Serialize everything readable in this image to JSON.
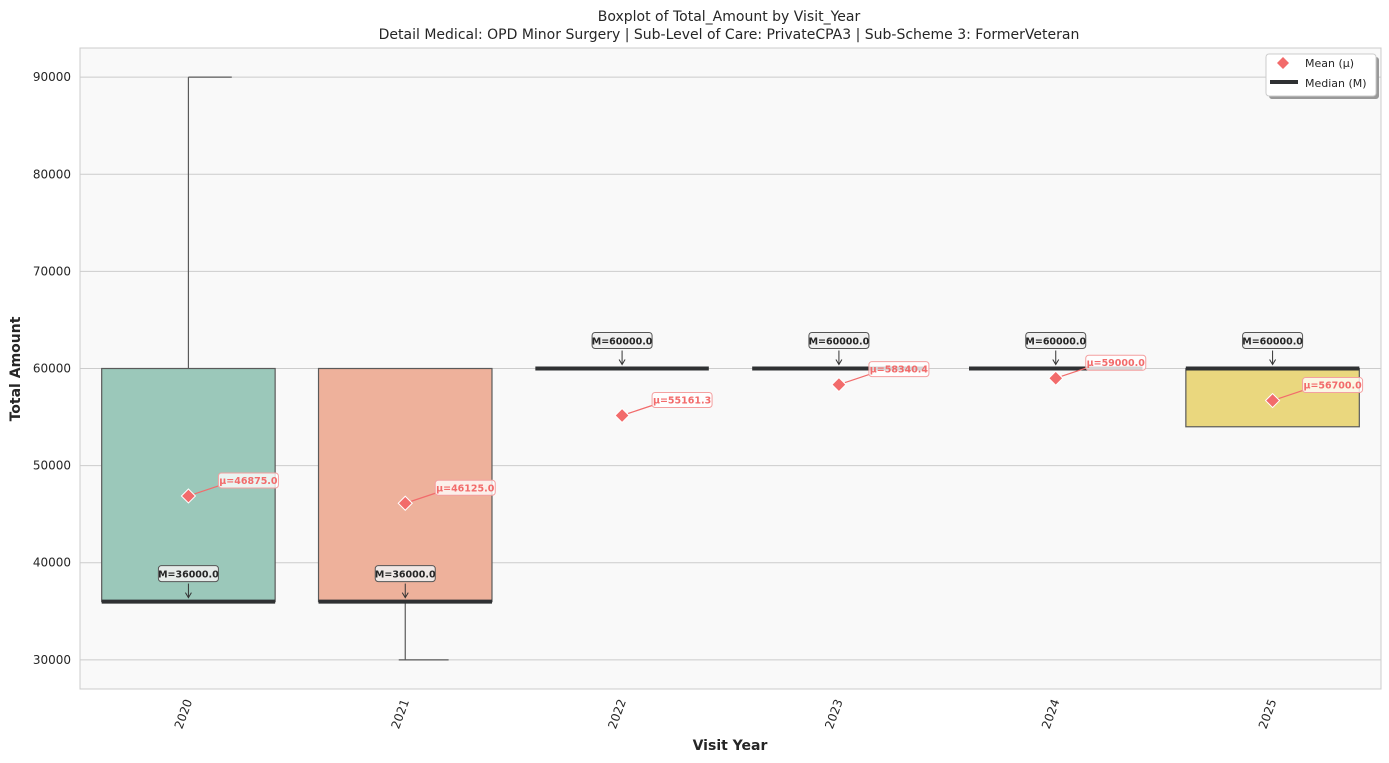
{
  "title": {
    "line1": "Boxplot of Total_Amount by Visit_Year",
    "line2": "Detail Medical: OPD Minor Surgery | Sub-Level of Care: PrivateCPA3 | Sub-Scheme 3: FormerVeteran"
  },
  "chart_data": {
    "type": "box",
    "xlabel": "Visit Year",
    "ylabel": "Total Amount",
    "ylim": [
      27000,
      93000
    ],
    "yticks": [
      30000,
      40000,
      50000,
      60000,
      70000,
      80000,
      90000
    ],
    "grid": true,
    "legend_position": "top-right",
    "legend": [
      {
        "label": "Mean (μ)",
        "marker": "diamond",
        "color": "#f26b6b"
      },
      {
        "label": "Median (M)",
        "marker": "line",
        "color": "#2f3133"
      }
    ],
    "categories": [
      "2020",
      "2021",
      "2022",
      "2023",
      "2024",
      "2025"
    ],
    "boxes": [
      {
        "year": "2020",
        "whisker_low": 36000,
        "q1": 36000,
        "median": 36000,
        "q3": 60000,
        "whisker_high": 90000,
        "mean": 46875.0,
        "median_label": "M=36000.0",
        "mean_label": "μ=46875.0",
        "color": "#9bc8ba"
      },
      {
        "year": "2021",
        "whisker_low": 30000,
        "q1": 36000,
        "median": 36000,
        "q3": 60000,
        "whisker_high": 60000,
        "mean": 46125.0,
        "median_label": "M=36000.0",
        "mean_label": "μ=46125.0",
        "color": "#eeb19b"
      },
      {
        "year": "2022",
        "whisker_low": 60000,
        "q1": 60000,
        "median": 60000,
        "q3": 60000,
        "whisker_high": 60000,
        "mean": 55161.3,
        "median_label": "M=60000.0",
        "mean_label": "μ=55161.3",
        "color": "#a9b5d3"
      },
      {
        "year": "2023",
        "whisker_low": 60000,
        "q1": 60000,
        "median": 60000,
        "q3": 60000,
        "whisker_high": 60000,
        "mean": 58340.4,
        "median_label": "M=60000.0",
        "mean_label": "μ=58340.4",
        "color": "#e1afcf"
      },
      {
        "year": "2024",
        "whisker_low": 60000,
        "q1": 60000,
        "median": 60000,
        "q3": 60000,
        "whisker_high": 60000,
        "mean": 59000.0,
        "median_label": "M=60000.0",
        "mean_label": "μ=59000.0",
        "color": "#bfda99"
      },
      {
        "year": "2025",
        "whisker_low": 54000,
        "q1": 54000,
        "median": 60000,
        "q3": 60000,
        "whisker_high": 60000,
        "mean": 56700.0,
        "median_label": "M=60000.0",
        "mean_label": "μ=56700.0",
        "color": "#ead77e"
      }
    ],
    "median_label_position": [
      "below",
      "below",
      "above",
      "above",
      "above",
      "above"
    ]
  },
  "colors": {
    "plot_background": "#f9f9f9",
    "grid": "#cccccc",
    "mean_marker": "#f26b6b",
    "median_line": "#2f3133",
    "whisker": "#5a5a5a"
  }
}
